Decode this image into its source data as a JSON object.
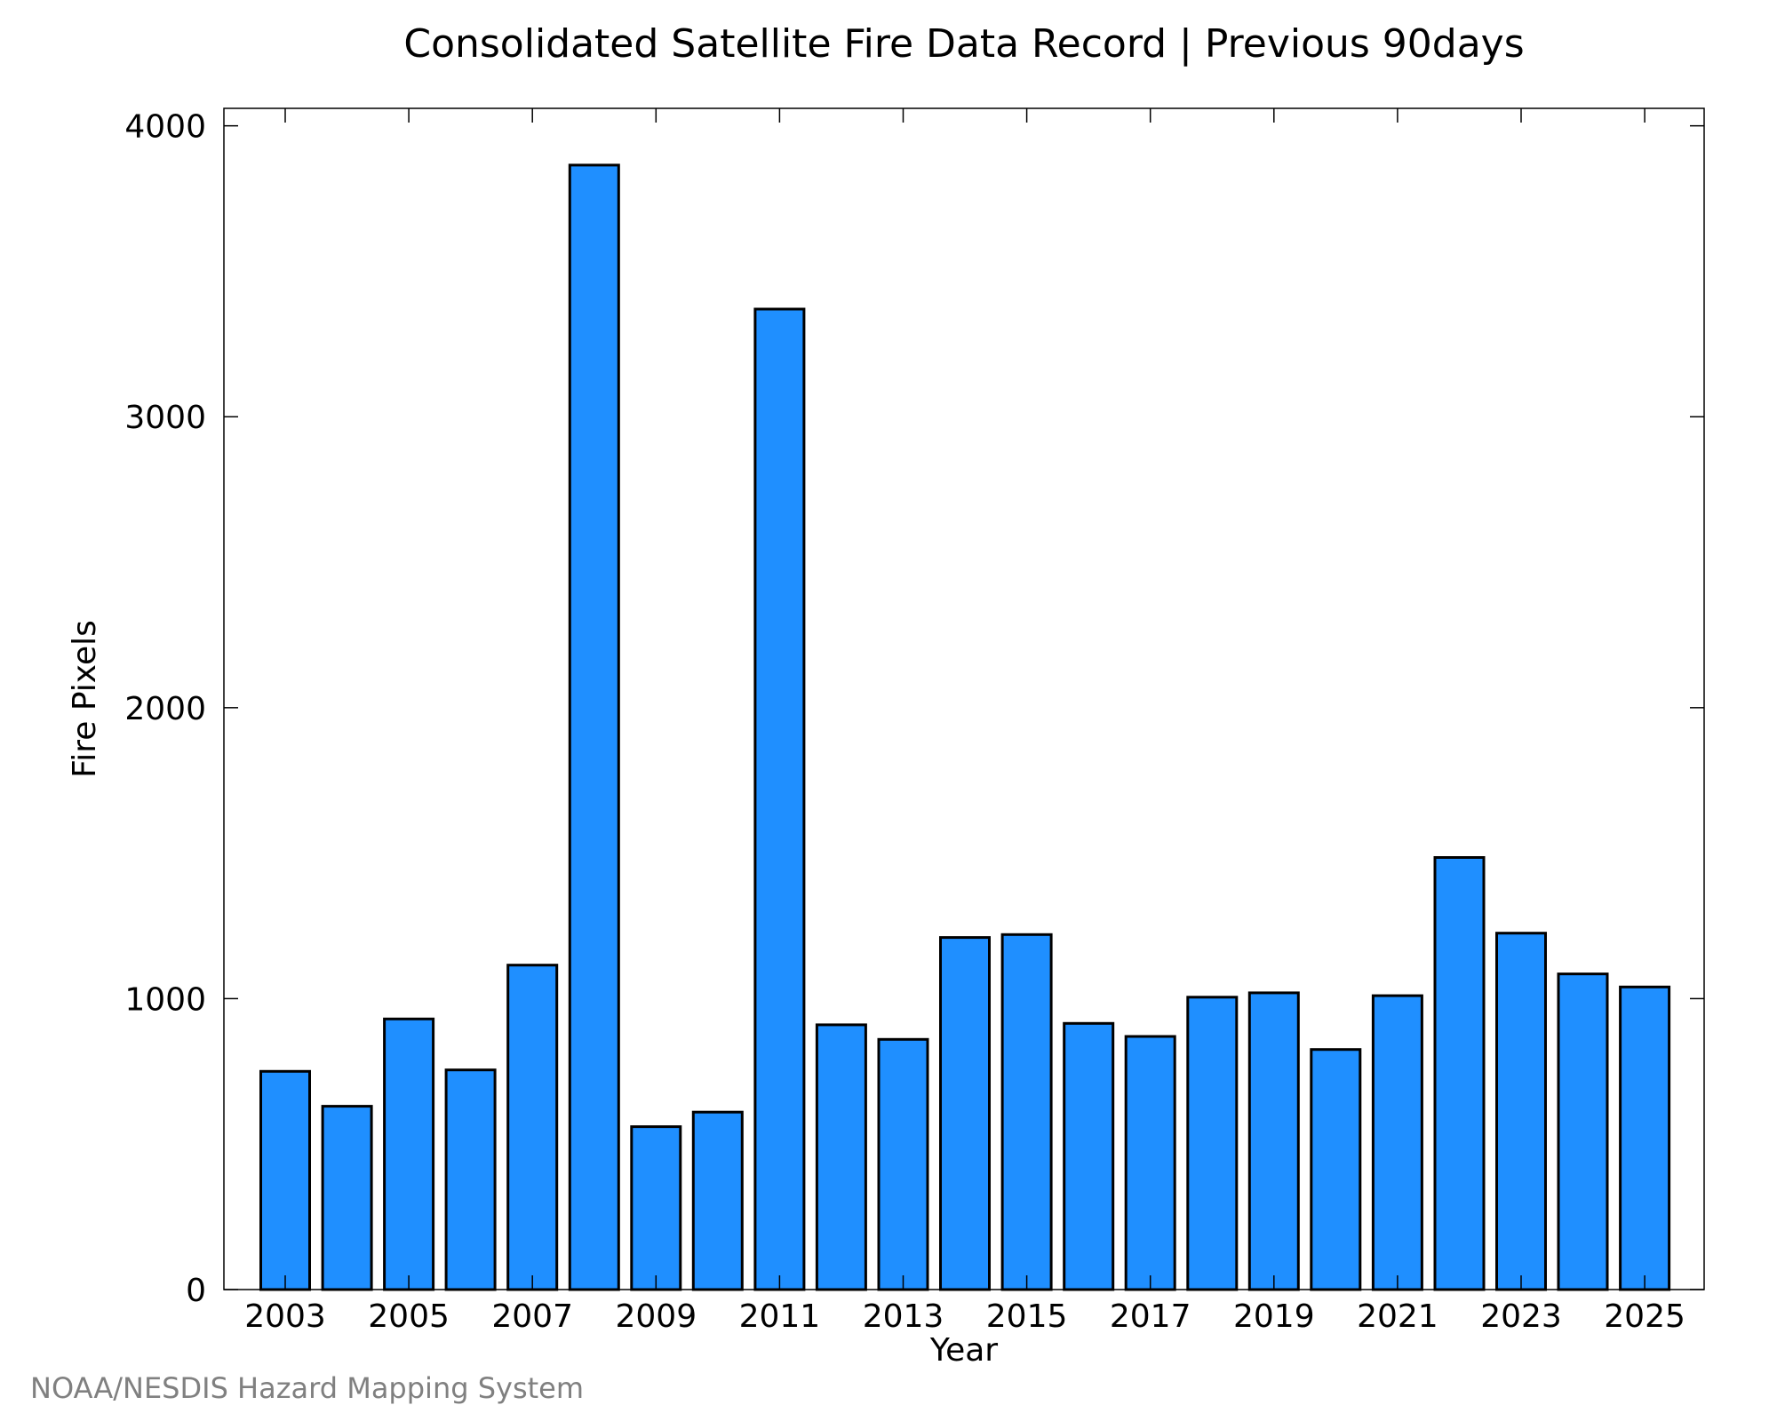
{
  "chart_data": {
    "type": "bar",
    "title": "Consolidated Satellite Fire Data Record | Previous 90days",
    "xlabel": "Year",
    "ylabel": "Fire Pixels",
    "categories": [
      "2003",
      "2004",
      "2005",
      "2006",
      "2007",
      "2008",
      "2009",
      "2010",
      "2011",
      "2012",
      "2013",
      "2014",
      "2015",
      "2016",
      "2017",
      "2018",
      "2019",
      "2020",
      "2021",
      "2022",
      "2023",
      "2024",
      "2025"
    ],
    "values": [
      750,
      630,
      930,
      755,
      1115,
      3865,
      560,
      610,
      3370,
      910,
      860,
      1210,
      1220,
      915,
      870,
      1005,
      1020,
      825,
      1010,
      1485,
      1225,
      1085,
      1040
    ],
    "x_tick_labels": [
      "2003",
      "2005",
      "2007",
      "2009",
      "2011",
      "2013",
      "2015",
      "2017",
      "2019",
      "2021",
      "2023",
      "2025"
    ],
    "y_tick_labels": [
      "0",
      "1000",
      "2000",
      "3000",
      "4000"
    ],
    "ylim": [
      0,
      4060
    ],
    "grid": false,
    "legend": "none"
  },
  "credit": "NOAA/NESDIS Hazard Mapping System",
  "colors": {
    "bar_fill": "#1f8fff",
    "bar_stroke": "#000000",
    "axis": "#000000",
    "credit_text": "#808080"
  }
}
